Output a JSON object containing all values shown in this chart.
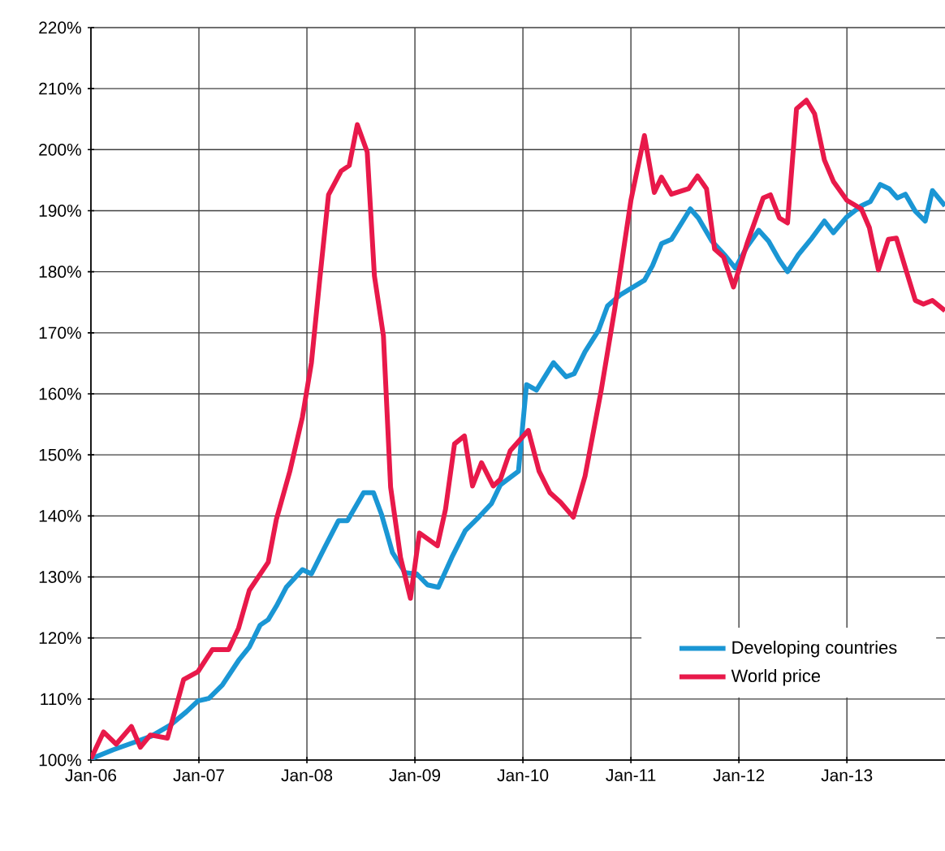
{
  "chart_data": {
    "type": "line",
    "grid": true,
    "legend": "bottom right",
    "line_style": "solid",
    "marker": "none",
    "xlim": [
      "2006-01-01",
      "2013-11-28"
    ],
    "ylim": [
      100,
      220
    ],
    "xticks": [
      {
        "value": "2006-01",
        "label": "Jan-06"
      },
      {
        "value": "2007-01",
        "label": "Jan-07"
      },
      {
        "value": "2008-01",
        "label": "Jan-08"
      },
      {
        "value": "2009-01",
        "label": "Jan-09"
      },
      {
        "value": "2010-01",
        "label": "Jan-10"
      },
      {
        "value": "2011-01",
        "label": "Jan-11"
      },
      {
        "value": "2012-01",
        "label": "Jan-12"
      },
      {
        "value": "2013-01",
        "label": "Jan-13"
      }
    ],
    "yticks": [
      {
        "value": 100,
        "label": "100%"
      },
      {
        "value": 110,
        "label": "110%"
      },
      {
        "value": 120,
        "label": "120%"
      },
      {
        "value": 130,
        "label": "130%"
      },
      {
        "value": 140,
        "label": "140%"
      },
      {
        "value": 150,
        "label": "150%"
      },
      {
        "value": 160,
        "label": "160%"
      },
      {
        "value": 170,
        "label": "170%"
      },
      {
        "value": 180,
        "label": "180%"
      },
      {
        "value": 190,
        "label": "190%"
      },
      {
        "value": 200,
        "label": "200%"
      },
      {
        "value": 210,
        "label": "210%"
      },
      {
        "value": 220,
        "label": "220%"
      }
    ],
    "series": [
      {
        "name": "Developing countries",
        "color": "#1a96d4",
        "x": [
          "2006-01-01",
          "2006-03-16",
          "2006-05-19",
          "2006-07-22",
          "2006-09-25",
          "2006-11-19",
          "2006-12-28",
          "2007-02-04",
          "2007-03-19",
          "2007-05-13",
          "2007-06-19",
          "2007-07-25",
          "2007-08-22",
          "2007-09-19",
          "2007-10-22",
          "2007-12-16",
          "2008-01-16",
          "2008-03-01",
          "2008-04-16",
          "2008-05-16",
          "2008-07-10",
          "2008-08-13",
          "2008-09-10",
          "2008-10-16",
          "2008-11-28",
          "2009-01-07",
          "2009-02-13",
          "2009-03-19",
          "2009-05-04",
          "2009-06-19",
          "2009-08-04",
          "2009-09-16",
          "2009-10-16",
          "2009-12-16",
          "2010-01-13",
          "2010-02-16",
          "2010-04-13",
          "2010-05-25",
          "2010-06-22",
          "2010-07-28",
          "2010-09-13",
          "2010-10-13",
          "2010-11-25",
          "2011-02-16",
          "2011-03-13",
          "2011-04-13",
          "2011-05-16",
          "2011-07-19",
          "2011-08-16",
          "2011-10-01",
          "2011-11-16",
          "2011-12-19",
          "2012-01-28",
          "2012-03-07",
          "2012-04-10",
          "2012-05-16",
          "2012-06-13",
          "2012-07-19",
          "2012-09-04",
          "2012-10-16",
          "2012-11-16",
          "2013-01-01",
          "2013-02-19",
          "2013-03-19",
          "2013-04-22",
          "2013-05-22",
          "2013-06-19",
          "2013-07-16",
          "2013-08-19",
          "2013-09-22",
          "2013-10-16",
          "2013-11-28"
        ],
        "values": [
          100.2,
          101.7,
          102.8,
          103.9,
          105.7,
          107.9,
          109.7,
          110.1,
          112.3,
          116.3,
          118.5,
          122.1,
          123,
          125.2,
          128.3,
          131.2,
          130.5,
          134.9,
          139.2,
          139.2,
          143.8,
          143.8,
          140.2,
          134,
          130.7,
          130.5,
          128.7,
          128.3,
          133.2,
          137.6,
          139.8,
          142,
          145.1,
          147.3,
          161.5,
          160.6,
          165.1,
          162.8,
          163.3,
          166.9,
          170.4,
          174.4,
          176.2,
          178.6,
          181,
          184.6,
          185.3,
          190.3,
          188.8,
          185,
          182.6,
          180.6,
          184.1,
          186.8,
          185,
          181.9,
          180,
          182.8,
          185.5,
          188.3,
          186.4,
          189,
          190.8,
          191.5,
          194.3,
          193.6,
          192.1,
          192.7,
          189.9,
          188.3,
          193.3,
          190.8
        ]
      },
      {
        "name": "World price",
        "color": "#e8194a",
        "x": [
          "2006-01-01",
          "2006-02-13",
          "2006-03-25",
          "2006-05-16",
          "2006-06-16",
          "2006-07-19",
          "2006-09-16",
          "2006-11-10",
          "2006-12-28",
          "2007-02-16",
          "2007-04-10",
          "2007-05-13",
          "2007-06-19",
          "2007-08-22",
          "2007-09-19",
          "2007-11-04",
          "2007-12-16",
          "2008-01-16",
          "2008-02-13",
          "2008-03-13",
          "2008-04-25",
          "2008-05-22",
          "2008-06-19",
          "2008-07-22",
          "2008-08-16",
          "2008-09-16",
          "2008-10-10",
          "2008-11-13",
          "2008-12-16",
          "2009-01-16",
          "2009-03-16",
          "2009-04-13",
          "2009-05-13",
          "2009-06-16",
          "2009-07-13",
          "2009-08-13",
          "2009-09-22",
          "2009-10-16",
          "2009-11-19",
          "2010-01-19",
          "2010-02-25",
          "2010-04-01",
          "2010-05-07",
          "2010-06-19",
          "2010-07-28",
          "2010-09-22",
          "2010-11-07",
          "2011-01-01",
          "2011-02-16",
          "2011-03-19",
          "2011-04-13",
          "2011-05-16",
          "2011-07-13",
          "2011-08-13",
          "2011-09-13",
          "2011-10-10",
          "2011-11-10",
          "2011-12-13",
          "2012-01-28",
          "2012-03-22",
          "2012-04-16",
          "2012-05-16",
          "2012-06-13",
          "2012-07-13",
          "2012-08-16",
          "2012-09-13",
          "2012-10-16",
          "2012-11-16",
          "2013-01-01",
          "2013-02-19",
          "2013-03-16",
          "2013-04-16",
          "2013-05-19",
          "2013-06-16",
          "2013-07-16",
          "2013-08-19",
          "2013-09-16",
          "2013-10-16",
          "2013-11-28"
        ],
        "values": [
          100.2,
          104.6,
          102.6,
          105.5,
          102.1,
          104.1,
          103.6,
          113.2,
          114.5,
          118.1,
          118.1,
          121.6,
          127.8,
          132.4,
          139.4,
          147.3,
          156.2,
          165.1,
          178.4,
          192.6,
          196.5,
          197.4,
          204.1,
          199.6,
          179.3,
          169.5,
          144.7,
          133.2,
          126.5,
          137.2,
          135.1,
          141.1,
          151.8,
          153.1,
          144.9,
          148.7,
          144.9,
          146,
          150.7,
          154,
          147.3,
          143.8,
          142.2,
          139.8,
          146.5,
          160.6,
          173.9,
          191.7,
          202.3,
          193,
          195.5,
          192.7,
          193.6,
          195.7,
          193.6,
          183.7,
          182.4,
          177.5,
          184.6,
          192.1,
          192.6,
          188.8,
          188,
          206.7,
          208.1,
          205.9,
          198.3,
          194.8,
          191.7,
          190.3,
          187.2,
          180.3,
          185.3,
          185.5,
          180.6,
          175.3,
          174.7,
          175.3,
          173.6
        ]
      }
    ]
  }
}
